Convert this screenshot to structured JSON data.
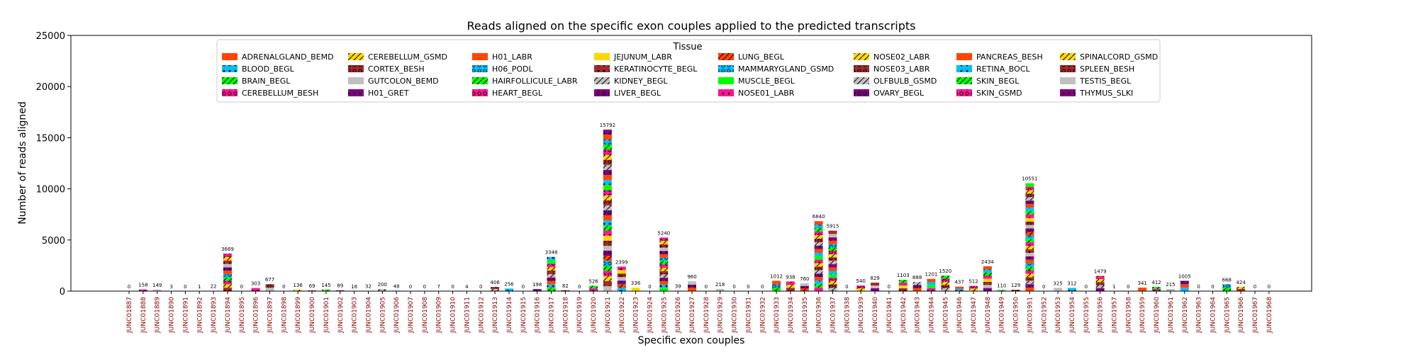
{
  "chart_data": {
    "type": "bar",
    "stacked": true,
    "title": "Reads aligned on the specific exon couples applied to the predicted transcripts",
    "xlabel": "Specific exon couples",
    "ylabel": "Number of reads aligned",
    "ylim": [
      0,
      25000
    ],
    "yticks": [
      0,
      5000,
      10000,
      15000,
      20000,
      25000
    ],
    "grid": false,
    "legend_title": "Tissue",
    "legend_position": "top",
    "categories": [
      "JUNC01887",
      "JUNC01888",
      "JUNC01889",
      "JUNC01890",
      "JUNC01891",
      "JUNC01892",
      "JUNC01893",
      "JUNC01894",
      "JUNC01895",
      "JUNC01896",
      "JUNC01897",
      "JUNC01898",
      "JUNC01899",
      "JUNC01900",
      "JUNC01901",
      "JUNC01902",
      "JUNC01903",
      "JUNC01904",
      "JUNC01905",
      "JUNC01906",
      "JUNC01907",
      "JUNC01908",
      "JUNC01909",
      "JUNC01910",
      "JUNC01911",
      "JUNC01912",
      "JUNC01913",
      "JUNC01914",
      "JUNC01915",
      "JUNC01916",
      "JUNC01917",
      "JUNC01918",
      "JUNC01919",
      "JUNC01920",
      "JUNC01921",
      "JUNC01922",
      "JUNC01923",
      "JUNC01924",
      "JUNC01925",
      "JUNC01926",
      "JUNC01927",
      "JUNC01928",
      "JUNC01929",
      "JUNC01930",
      "JUNC01931",
      "JUNC01932",
      "JUNC01933",
      "JUNC01934",
      "JUNC01935",
      "JUNC01936",
      "JUNC01937",
      "JUNC01938",
      "JUNC01939",
      "JUNC01940",
      "JUNC01941",
      "JUNC01942",
      "JUNC01943",
      "JUNC01944",
      "JUNC01945",
      "JUNC01946",
      "JUNC01947",
      "JUNC01948",
      "JUNC01949",
      "JUNC01950",
      "JUNC01951",
      "JUNC01952",
      "JUNC01953",
      "JUNC01954",
      "JUNC01955",
      "JUNC01956",
      "JUNC01957",
      "JUNC01958",
      "JUNC01959",
      "JUNC01960",
      "JUNC01961",
      "JUNC01962",
      "JUNC01963",
      "JUNC01964",
      "JUNC01965",
      "JUNC01966",
      "JUNC01967",
      "JUNC01968"
    ],
    "totals": [
      0,
      158,
      149,
      3,
      0,
      1,
      22,
      3669,
      0,
      303,
      677,
      0,
      136,
      69,
      145,
      89,
      16,
      32,
      200,
      48,
      0,
      0,
      7,
      0,
      4,
      0,
      406,
      256,
      0,
      198,
      3348,
      82,
      0,
      526,
      15792,
      2399,
      336,
      0,
      5240,
      39,
      960,
      0,
      218,
      0,
      0,
      0,
      1012,
      938,
      760,
      6840,
      5915,
      0,
      540,
      829,
      0,
      1103,
      888,
      1201,
      1520,
      437,
      512,
      2434,
      110,
      129,
      10551,
      0,
      325,
      312,
      0,
      1479,
      1,
      0,
      341,
      412,
      215,
      1005,
      0,
      0,
      668,
      424,
      0,
      0
    ],
    "legend": [
      {
        "name": "ADRENALGLAND_BEMD",
        "color": "#ff4500",
        "hatch": "none"
      },
      {
        "name": "BLOOD_BEGL",
        "color": "#00bfff",
        "hatch": "dot"
      },
      {
        "name": "BRAIN_BEGL",
        "color": "#00ff00",
        "hatch": "slash"
      },
      {
        "name": "CEREBELLUM_BESH",
        "color": "#ff1493",
        "hatch": "circle"
      },
      {
        "name": "CEREBELLUM_GSMD",
        "color": "#ffd700",
        "hatch": "slash"
      },
      {
        "name": "CORTEX_BESH",
        "color": "#a52a2a",
        "hatch": "circle"
      },
      {
        "name": "GUTCOLON_BEMD",
        "color": "#c0c0c0",
        "hatch": "none"
      },
      {
        "name": "H01_GRET",
        "color": "#800080",
        "hatch": "dot"
      },
      {
        "name": "H01_LABR",
        "color": "#ff4500",
        "hatch": "none"
      },
      {
        "name": "H06_PODL",
        "color": "#00bfff",
        "hatch": "circle"
      },
      {
        "name": "HAIRFOLLICULE_LABR",
        "color": "#00ff00",
        "hatch": "slash"
      },
      {
        "name": "HEART_BEGL",
        "color": "#ff1493",
        "hatch": "circle"
      },
      {
        "name": "JEJUNUM_LABR",
        "color": "#ffd700",
        "hatch": "none"
      },
      {
        "name": "KERATINOCYTE_BEGL",
        "color": "#a52a2a",
        "hatch": "dot"
      },
      {
        "name": "KIDNEY_BEGL",
        "color": "#c0c0c0",
        "hatch": "slash"
      },
      {
        "name": "LIVER_BEGL",
        "color": "#800080",
        "hatch": "circle"
      },
      {
        "name": "LUNG_BEGL",
        "color": "#ff4500",
        "hatch": "slash"
      },
      {
        "name": "MAMMARYGLAND_GSMD",
        "color": "#00bfff",
        "hatch": "circle"
      },
      {
        "name": "MUSCLE_BEGL",
        "color": "#00ff00",
        "hatch": "none"
      },
      {
        "name": "NOSE01_LABR",
        "color": "#ff1493",
        "hatch": "dot"
      },
      {
        "name": "NOSE02_LABR",
        "color": "#ffd700",
        "hatch": "slash"
      },
      {
        "name": "NOSE03_LABR",
        "color": "#a52a2a",
        "hatch": "circle"
      },
      {
        "name": "OLFBULB_GSMD",
        "color": "#c0c0c0",
        "hatch": "slash"
      },
      {
        "name": "OVARY_BEGL",
        "color": "#800080",
        "hatch": "circle"
      },
      {
        "name": "PANCREAS_BESH",
        "color": "#ff4500",
        "hatch": "none"
      },
      {
        "name": "RETINA_BOCL",
        "color": "#00bfff",
        "hatch": "dot"
      },
      {
        "name": "SKIN_BEGL",
        "color": "#00ff00",
        "hatch": "slash"
      },
      {
        "name": "SKIN_GSMD",
        "color": "#ff1493",
        "hatch": "circle"
      },
      {
        "name": "SPINALCORD_GSMD",
        "color": "#ffd700",
        "hatch": "slash"
      },
      {
        "name": "SPLEEN_BESH",
        "color": "#a52a2a",
        "hatch": "circle"
      },
      {
        "name": "TESTIS_BEGL",
        "color": "#c0c0c0",
        "hatch": "none"
      },
      {
        "name": "THYMUS_SLKI",
        "color": "#800080",
        "hatch": "dot"
      }
    ],
    "tick_label_color": "#8b0000"
  }
}
